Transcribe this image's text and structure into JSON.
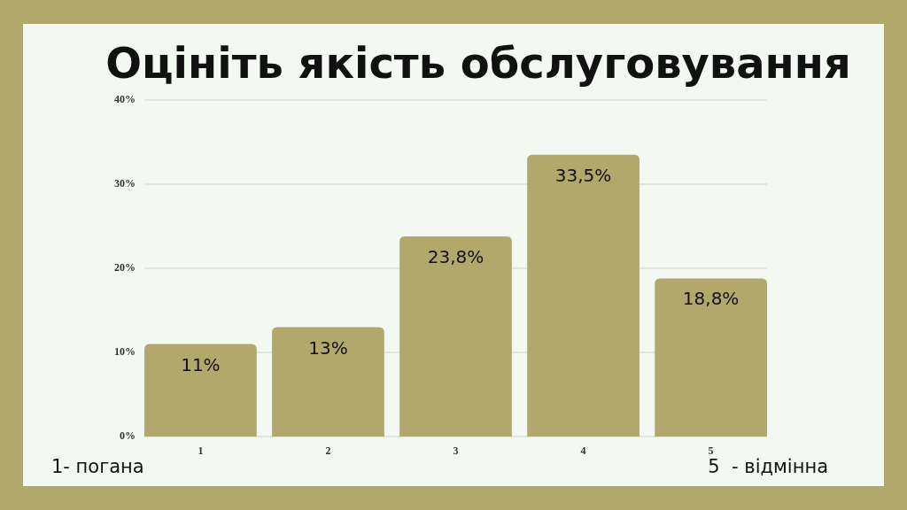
{
  "chart_data": {
    "type": "bar",
    "title": "Оцініть якість обслуговування",
    "categories": [
      "1",
      "2",
      "3",
      "4",
      "5"
    ],
    "values": [
      11,
      13,
      23.8,
      33.5,
      18.8
    ],
    "value_labels": [
      "11%",
      "13%",
      "23,8%",
      "33,5%",
      "18,8%"
    ],
    "color": "#b3a86c",
    "ylim": [
      0,
      40
    ],
    "yticks": [
      {
        "value": 0,
        "label": "0%"
      },
      {
        "value": 10,
        "label": "10%"
      },
      {
        "value": 20,
        "label": "20%"
      },
      {
        "value": 30,
        "label": "30%"
      },
      {
        "value": 40,
        "label": "40%"
      }
    ],
    "grid": "y",
    "annotations": [
      "1- погана",
      "5  - відмінна"
    ]
  }
}
